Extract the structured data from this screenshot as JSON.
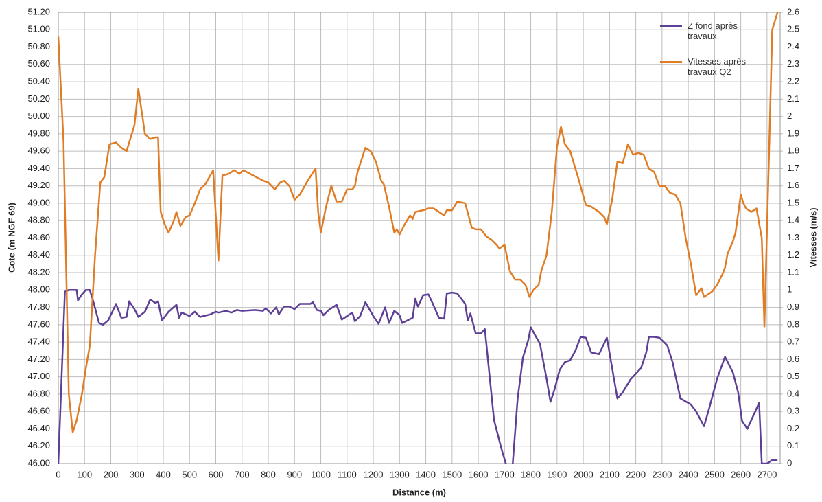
{
  "chart_data": {
    "type": "line",
    "xlabel": "Distance (m)",
    "ylabel": "Cote (m NGF 69)",
    "y2label": "Vitesses (m/s)",
    "xlim": [
      0,
      2750
    ],
    "xticks": [
      0,
      100,
      200,
      300,
      400,
      500,
      600,
      700,
      800,
      900,
      1000,
      1100,
      1200,
      1300,
      1400,
      1500,
      1600,
      1700,
      1800,
      1900,
      2000,
      2100,
      2200,
      2300,
      2400,
      2500,
      2600,
      2700
    ],
    "ylim": [
      46,
      51.2
    ],
    "yticks": [
      {
        "value": 46,
        "label": "46.00"
      },
      {
        "value": 46.2,
        "label": "46.20"
      },
      {
        "value": 46.4,
        "label": "46.40"
      },
      {
        "value": 46.6,
        "label": "46.60"
      },
      {
        "value": 46.8,
        "label": "46.80"
      },
      {
        "value": 47,
        "label": "47.00"
      },
      {
        "value": 47.2,
        "label": "47.20"
      },
      {
        "value": 47.4,
        "label": "47.40"
      },
      {
        "value": 47.6,
        "label": "47.60"
      },
      {
        "value": 47.8,
        "label": "47.80"
      },
      {
        "value": 48,
        "label": "48.00"
      },
      {
        "value": 48.2,
        "label": "48.20"
      },
      {
        "value": 48.4,
        "label": "48.40"
      },
      {
        "value": 48.6,
        "label": "48.60"
      },
      {
        "value": 48.8,
        "label": "48.80"
      },
      {
        "value": 49,
        "label": "49.00"
      },
      {
        "value": 49.2,
        "label": "49.20"
      },
      {
        "value": 49.4,
        "label": "49.40"
      },
      {
        "value": 49.6,
        "label": "49.60"
      },
      {
        "value": 49.8,
        "label": "49.80"
      },
      {
        "value": 50,
        "label": "50.00"
      },
      {
        "value": 50.2,
        "label": "50.20"
      },
      {
        "value": 50.4,
        "label": "50.40"
      },
      {
        "value": 50.6,
        "label": "50.60"
      },
      {
        "value": 50.8,
        "label": "50.80"
      },
      {
        "value": 51,
        "label": "51.00"
      },
      {
        "value": 51.2,
        "label": "51.20"
      }
    ],
    "y2lim": [
      0,
      2.6
    ],
    "y2ticks": [
      0,
      0.1,
      0.2,
      0.3,
      0.4,
      0.5,
      0.6,
      0.7,
      0.8,
      0.9,
      1,
      1.1,
      1.2,
      1.3,
      1.4,
      1.5,
      1.6,
      1.7,
      1.8,
      1.9,
      2,
      2.1,
      2.2,
      2.3,
      2.4,
      2.5,
      2.6
    ],
    "grid": true,
    "legend": "top-right",
    "series": [
      {
        "name": "Z fond après travaux",
        "color": "#5e3f96",
        "x": [
          0,
          25,
          40,
          70,
          75,
          90,
          105,
          120,
          135,
          155,
          170,
          190,
          220,
          240,
          260,
          270,
          290,
          305,
          330,
          350,
          370,
          380,
          395,
          420,
          450,
          460,
          470,
          500,
          520,
          540,
          580,
          600,
          610,
          640,
          660,
          680,
          700,
          750,
          780,
          790,
          810,
          830,
          840,
          860,
          880,
          900,
          920,
          960,
          970,
          985,
          1000,
          1010,
          1030,
          1060,
          1080,
          1120,
          1130,
          1150,
          1170,
          1200,
          1220,
          1245,
          1260,
          1280,
          1300,
          1310,
          1350,
          1360,
          1370,
          1390,
          1410,
          1430,
          1450,
          1470,
          1480,
          1500,
          1520,
          1550,
          1560,
          1570,
          1590,
          1610,
          1625,
          1660,
          1690,
          1710,
          1730,
          1750,
          1770,
          1790,
          1800,
          1820,
          1835,
          1860,
          1875,
          1890,
          1910,
          1930,
          1950,
          1970,
          1990,
          2010,
          2030,
          2060,
          2090,
          2130,
          2150,
          2180,
          2220,
          2240,
          2250,
          2270,
          2290,
          2320,
          2340,
          2370,
          2410,
          2430,
          2460,
          2480,
          2510,
          2540,
          2570,
          2590,
          2605,
          2625,
          2670,
          2680,
          2700,
          2720,
          2740
        ],
        "values": [
          46.0,
          47.98,
          48.0,
          48.0,
          47.88,
          47.95,
          48.0,
          48.0,
          47.85,
          47.62,
          47.6,
          47.65,
          47.84,
          47.68,
          47.69,
          47.87,
          47.78,
          47.69,
          47.75,
          47.89,
          47.85,
          47.87,
          47.65,
          47.75,
          47.83,
          47.68,
          47.74,
          47.7,
          47.75,
          47.69,
          47.72,
          47.75,
          47.74,
          47.76,
          47.74,
          47.77,
          47.76,
          47.77,
          47.76,
          47.79,
          47.73,
          47.8,
          47.72,
          47.81,
          47.81,
          47.78,
          47.84,
          47.84,
          47.86,
          47.77,
          47.76,
          47.71,
          47.77,
          47.83,
          47.66,
          47.74,
          47.64,
          47.7,
          47.86,
          47.7,
          47.61,
          47.8,
          47.62,
          47.76,
          47.71,
          47.62,
          47.68,
          47.9,
          47.81,
          47.94,
          47.95,
          47.82,
          47.68,
          47.67,
          47.96,
          47.97,
          47.96,
          47.84,
          47.65,
          47.73,
          47.5,
          47.5,
          47.55,
          46.5,
          46.15,
          45.95,
          45.95,
          46.75,
          47.22,
          47.42,
          47.57,
          47.46,
          47.38,
          46.98,
          46.71,
          46.85,
          47.08,
          47.17,
          47.19,
          47.3,
          47.46,
          47.45,
          47.28,
          47.26,
          47.45,
          46.75,
          46.82,
          46.97,
          47.1,
          47.28,
          47.46,
          47.46,
          47.45,
          47.36,
          47.17,
          46.75,
          46.68,
          46.6,
          46.43,
          46.64,
          46.98,
          47.23,
          47.05,
          46.82,
          46.49,
          46.4,
          46.7,
          46.0,
          46.0,
          46.04,
          46.04
        ]
      },
      {
        "name": "Vitesses après travaux Q2",
        "color": "#e07c24",
        "axis": "y2",
        "x": [
          0,
          20,
          40,
          55,
          70,
          90,
          105,
          120,
          140,
          160,
          175,
          195,
          220,
          240,
          260,
          290,
          305,
          330,
          350,
          370,
          380,
          390,
          405,
          420,
          440,
          450,
          465,
          485,
          500,
          520,
          540,
          560,
          590,
          610,
          625,
          650,
          670,
          690,
          705,
          780,
          800,
          825,
          845,
          860,
          880,
          900,
          920,
          950,
          980,
          990,
          1000,
          1020,
          1040,
          1060,
          1080,
          1100,
          1120,
          1130,
          1140,
          1170,
          1190,
          1210,
          1230,
          1240,
          1260,
          1280,
          1290,
          1300,
          1320,
          1340,
          1350,
          1360,
          1390,
          1410,
          1430,
          1470,
          1480,
          1500,
          1520,
          1550,
          1575,
          1590,
          1610,
          1630,
          1650,
          1670,
          1680,
          1700,
          1720,
          1740,
          1760,
          1780,
          1795,
          1810,
          1830,
          1840,
          1860,
          1880,
          1900,
          1915,
          1930,
          1950,
          1980,
          2010,
          2030,
          2060,
          2080,
          2090,
          2110,
          2130,
          2150,
          2170,
          2190,
          2210,
          2230,
          2250,
          2270,
          2290,
          2310,
          2330,
          2350,
          2370,
          2390,
          2410,
          2430,
          2450,
          2460,
          2490,
          2510,
          2530,
          2540,
          2550,
          2570,
          2580,
          2600,
          2610,
          2620,
          2640,
          2660,
          2680,
          2690,
          2710,
          2720,
          2740
        ],
        "values": [
          2.46,
          1.85,
          0.4,
          0.18,
          0.25,
          0.4,
          0.55,
          0.68,
          1.2,
          1.62,
          1.65,
          1.84,
          1.85,
          1.82,
          1.8,
          1.95,
          2.16,
          1.9,
          1.87,
          1.88,
          1.88,
          1.45,
          1.38,
          1.33,
          1.4,
          1.45,
          1.37,
          1.42,
          1.43,
          1.5,
          1.58,
          1.61,
          1.69,
          1.17,
          1.66,
          1.67,
          1.69,
          1.67,
          1.69,
          1.63,
          1.62,
          1.58,
          1.62,
          1.63,
          1.6,
          1.52,
          1.55,
          1.63,
          1.7,
          1.45,
          1.33,
          1.48,
          1.6,
          1.51,
          1.51,
          1.58,
          1.58,
          1.6,
          1.68,
          1.82,
          1.8,
          1.74,
          1.63,
          1.61,
          1.48,
          1.33,
          1.35,
          1.32,
          1.38,
          1.43,
          1.41,
          1.45,
          1.46,
          1.47,
          1.47,
          1.43,
          1.46,
          1.46,
          1.51,
          1.5,
          1.36,
          1.35,
          1.35,
          1.31,
          1.29,
          1.26,
          1.24,
          1.26,
          1.11,
          1.06,
          1.06,
          1.03,
          0.96,
          1.0,
          1.03,
          1.11,
          1.2,
          1.45,
          1.83,
          1.94,
          1.84,
          1.8,
          1.65,
          1.49,
          1.48,
          1.45,
          1.42,
          1.38,
          1.52,
          1.74,
          1.73,
          1.84,
          1.78,
          1.79,
          1.78,
          1.7,
          1.68,
          1.6,
          1.6,
          1.56,
          1.55,
          1.5,
          1.3,
          1.15,
          0.97,
          1.01,
          0.96,
          0.99,
          1.03,
          1.09,
          1.13,
          1.21,
          1.28,
          1.33,
          1.55,
          1.5,
          1.47,
          1.45,
          1.47,
          1.3,
          0.79,
          1.92,
          2.5,
          2.6
        ]
      }
    ]
  }
}
